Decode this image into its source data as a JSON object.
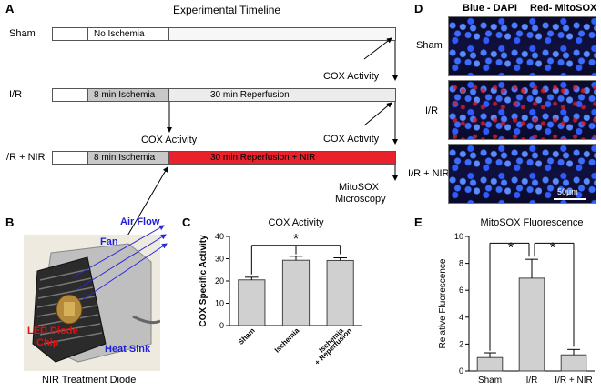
{
  "panels": {
    "a": "A",
    "b": "B",
    "c": "C",
    "d": "D",
    "e": "E"
  },
  "timeline": {
    "title": "Experimental Timeline",
    "rows": [
      {
        "label": "Sham",
        "segments": [
          "No Ischemia"
        ]
      },
      {
        "label": "I/R",
        "segments": [
          "8 min Ischemia",
          "30 min Reperfusion"
        ]
      },
      {
        "label": "I/R + NIR",
        "segments": [
          "8 min Ischemia",
          "30 min Reperfusion + NIR"
        ]
      }
    ],
    "annotations": {
      "cox_activity": "COX Activity",
      "mitosox_line1": "MitoSOX",
      "mitosox_line2": "Microscopy"
    },
    "colors": {
      "ischemia": "#c8c8c8",
      "reperfusion": "#ececec",
      "nir": "#e8212b"
    }
  },
  "diode": {
    "caption": "NIR Treatment Diode",
    "labels": {
      "air_flow": "Air Flow",
      "fan": "Fan",
      "led_line1": "LED Diode",
      "led_line2": "Chip",
      "heat_sink": "Heat Sink"
    }
  },
  "micrographs": {
    "channel_blue": "Blue - DAPI",
    "channel_red": "Red- MitoSOX",
    "rows": [
      "Sham",
      "I/R",
      "I/R + NIR"
    ],
    "scale_bar": "50μm"
  },
  "chart_data": [
    {
      "type": "bar",
      "title": "COX Activity",
      "categories": [
        "Sham",
        "Ischemia",
        "Ischemia + Reperfusion"
      ],
      "values": [
        20.5,
        29.3,
        29.2
      ],
      "errors": [
        1.2,
        1.8,
        1.2
      ],
      "ylabel": "COX Specific Activity",
      "ylim": [
        0,
        40
      ],
      "yticks": [
        0,
        10,
        20,
        30,
        40
      ],
      "significance": "*"
    },
    {
      "type": "bar",
      "title": "MitoSOX Fluorescence",
      "categories": [
        "Sham",
        "I/R",
        "I/R + NIR"
      ],
      "values": [
        1.0,
        6.9,
        1.2
      ],
      "errors": [
        0.35,
        1.4,
        0.4
      ],
      "ylabel": "Relative Fluorescence",
      "ylim": [
        0,
        10
      ],
      "yticks": [
        0,
        2,
        4,
        6,
        8,
        10
      ],
      "significance": [
        "*",
        "*"
      ]
    }
  ]
}
